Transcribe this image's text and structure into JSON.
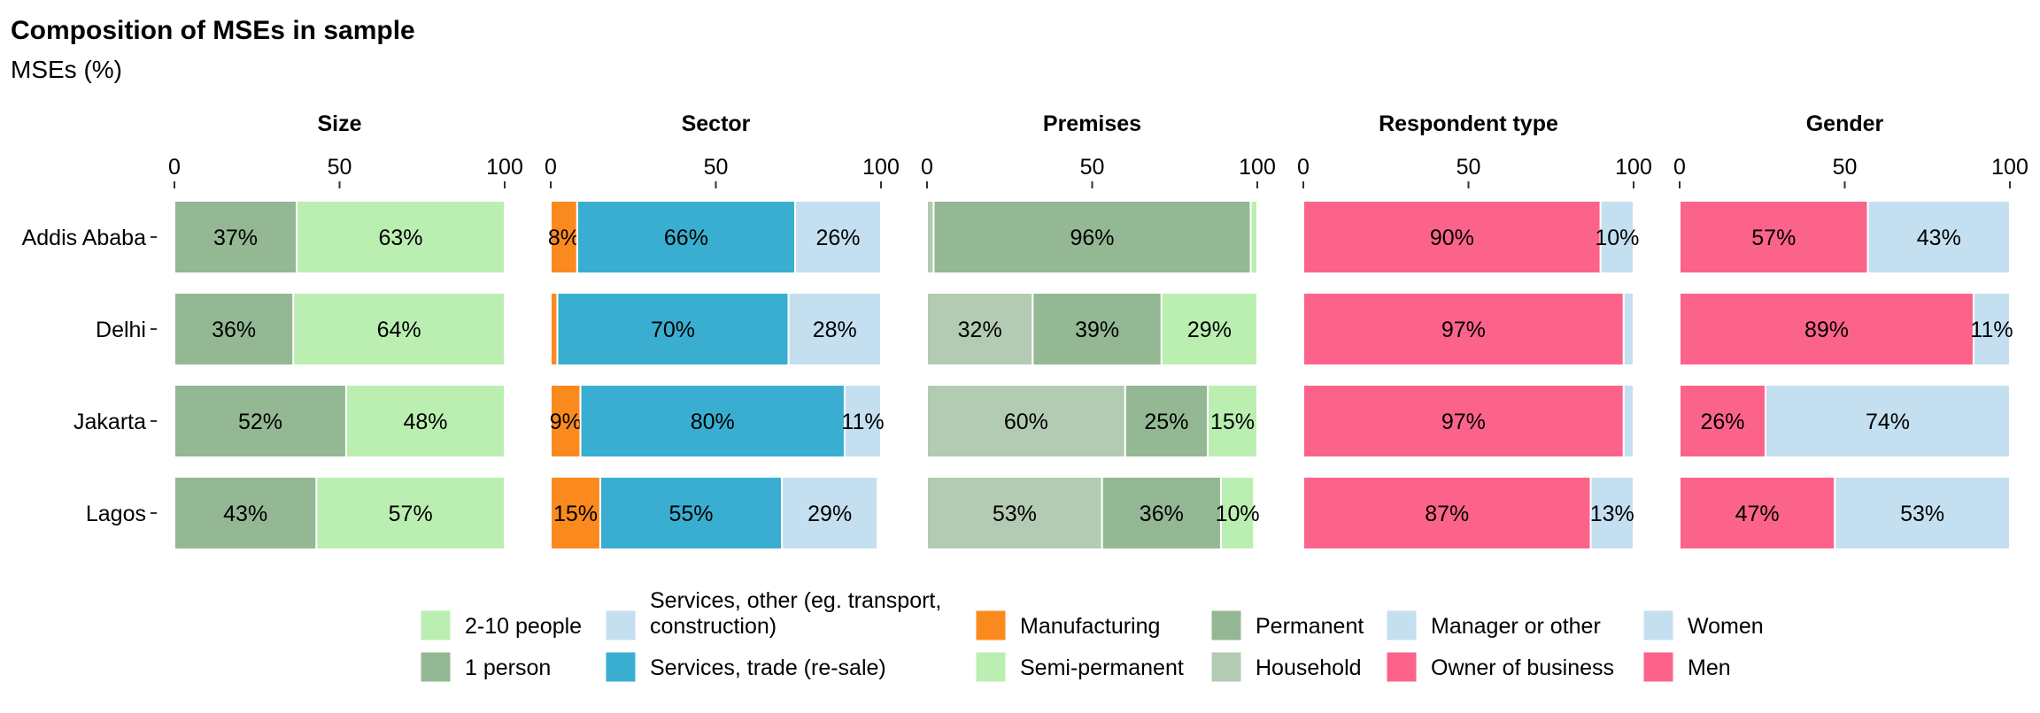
{
  "title": "Composition of MSEs in sample",
  "subtitle": "MSEs (%)",
  "chart_data": {
    "type": "bar",
    "orientation": "horizontal",
    "stacked": true,
    "categories": [
      "Addis Ababa",
      "Delhi",
      "Jakarta",
      "Lagos"
    ],
    "xlim": [
      0,
      100
    ],
    "xticks": [
      "0",
      "50",
      "100"
    ],
    "grid": false,
    "legend_position": "bottom",
    "panels": [
      {
        "title": "Size",
        "series": [
          {
            "name": "1 person",
            "color": "#93b893",
            "values": [
              37,
              36,
              52,
              43
            ],
            "labels": [
              "37%",
              "36%",
              "52%",
              "43%"
            ]
          },
          {
            "name": "2-10 people",
            "color": "#bbeeb1",
            "values": [
              63,
              64,
              48,
              57
            ],
            "labels": [
              "63%",
              "64%",
              "48%",
              "57%"
            ]
          }
        ]
      },
      {
        "title": "Sector",
        "series": [
          {
            "name": "Manufacturing",
            "color": "#fb8a1e",
            "values": [
              8,
              2,
              9,
              15
            ],
            "labels": [
              "8%",
              "",
              "9%",
              "15%"
            ]
          },
          {
            "name": "Services, trade (re-sale)",
            "color": "#3aaed1",
            "values": [
              66,
              70,
              80,
              55
            ],
            "labels": [
              "66%",
              "70%",
              "80%",
              "55%"
            ]
          },
          {
            "name": "Services, other (eg. transport, construction)",
            "color": "#c4dff0",
            "values": [
              26,
              28,
              11,
              29
            ],
            "labels": [
              "26%",
              "28%",
              "11%",
              "29%"
            ]
          }
        ]
      },
      {
        "title": "Premises",
        "series": [
          {
            "name": "Household",
            "color": "#b2cbb2",
            "values": [
              2,
              32,
              60,
              53
            ],
            "labels": [
              "",
              "32%",
              "60%",
              "53%"
            ]
          },
          {
            "name": "Permanent",
            "color": "#93b893",
            "values": [
              96,
              39,
              25,
              36
            ],
            "labels": [
              "96%",
              "39%",
              "25%",
              "36%"
            ]
          },
          {
            "name": "Semi-permanent",
            "color": "#bbeeb1",
            "values": [
              2,
              29,
              15,
              10
            ],
            "labels": [
              "",
              "29%",
              "15%",
              "10%"
            ]
          }
        ]
      },
      {
        "title": "Respondent type",
        "series": [
          {
            "name": "Owner of business",
            "color": "#fc638a",
            "values": [
              90,
              97,
              97,
              87
            ],
            "labels": [
              "90%",
              "97%",
              "97%",
              "87%"
            ]
          },
          {
            "name": "Manager or other",
            "color": "#c4dff0",
            "values": [
              10,
              3,
              3,
              13
            ],
            "labels": [
              "10%",
              "",
              "",
              "13%"
            ]
          }
        ]
      },
      {
        "title": "Gender",
        "series": [
          {
            "name": "Men",
            "color": "#fc638a",
            "values": [
              57,
              89,
              26,
              47
            ],
            "labels": [
              "57%",
              "89%",
              "26%",
              "47%"
            ]
          },
          {
            "name": "Women",
            "color": "#c4dff0",
            "values": [
              43,
              11,
              74,
              53
            ],
            "labels": [
              "43%",
              "11%",
              "74%",
              "53%"
            ]
          }
        ]
      }
    ],
    "legend": [
      [
        {
          "name": "2-10 people",
          "color": "#bbeeb1"
        },
        {
          "name": "1 person",
          "color": "#93b893"
        }
      ],
      [
        {
          "name": "Services, other (eg. transport, construction)",
          "display": [
            "Services, other (eg. transport,",
            "construction)"
          ],
          "color": "#c4dff0"
        },
        {
          "name": "Services, trade (re-sale)",
          "color": "#3aaed1"
        }
      ],
      [
        {
          "name": "Manufacturing",
          "color": "#fb8a1e"
        },
        {
          "name": "Semi-permanent",
          "color": "#bbeeb1"
        }
      ],
      [
        {
          "name": "Permanent",
          "color": "#93b893"
        },
        {
          "name": "Household",
          "color": "#b2cbb2"
        }
      ],
      [
        {
          "name": "Manager or other",
          "color": "#c4dff0"
        },
        {
          "name": "Owner of business",
          "color": "#fc638a"
        }
      ],
      [
        {
          "name": "Women",
          "color": "#c4dff0"
        },
        {
          "name": "Men",
          "color": "#fc638a"
        }
      ]
    ]
  }
}
